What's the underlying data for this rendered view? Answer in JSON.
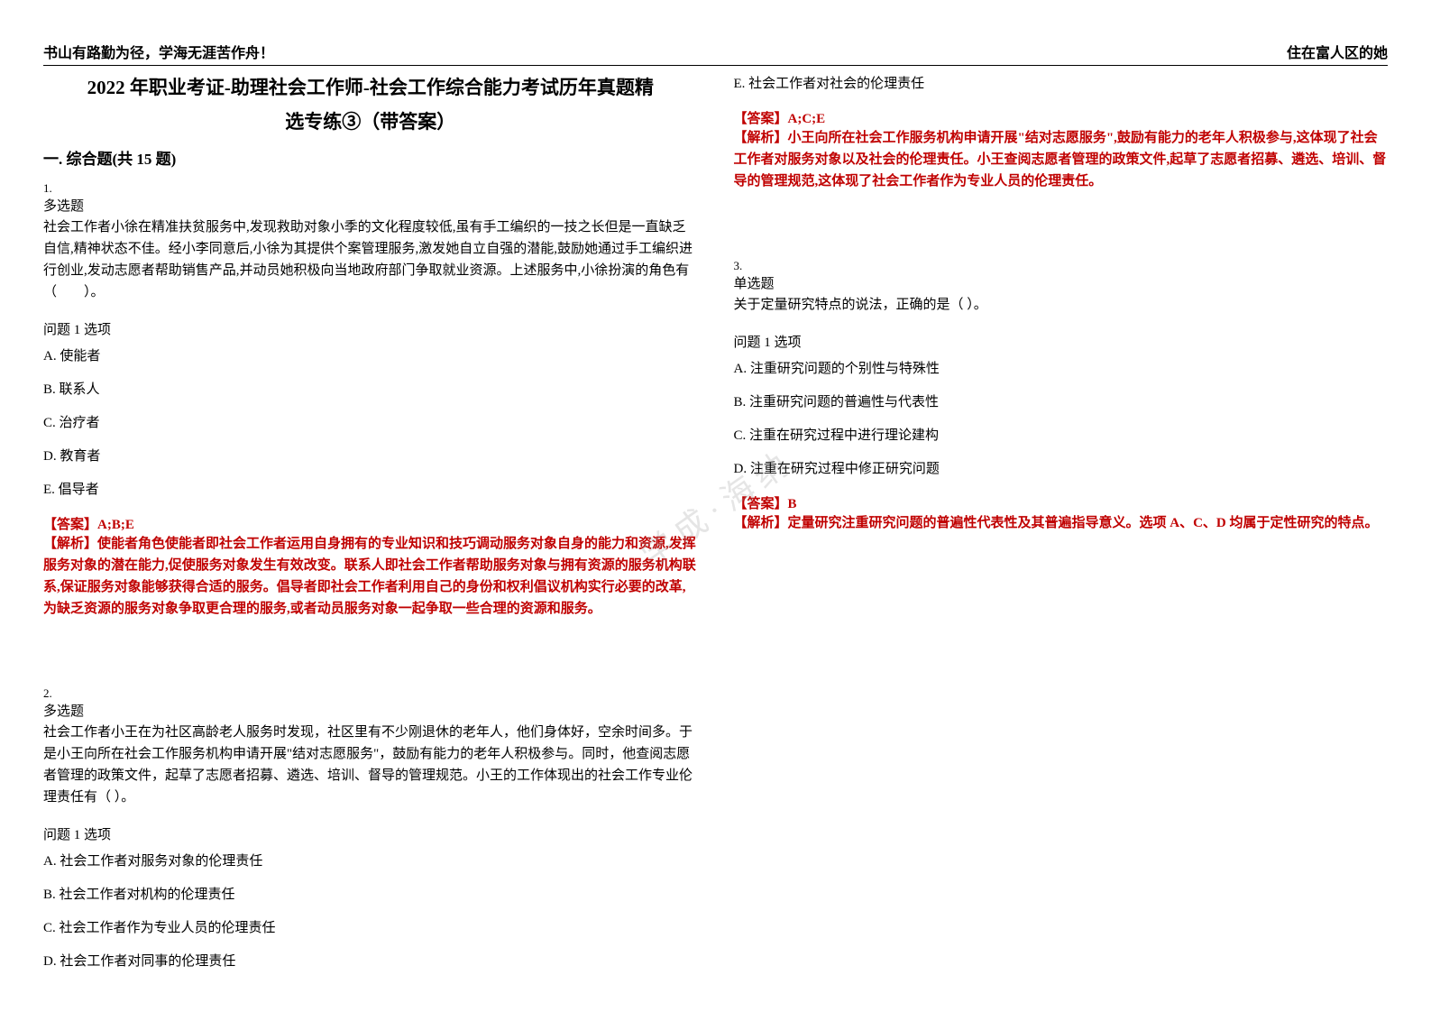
{
  "header": {
    "left": "书山有路勤为径，学海无涯苦作舟！",
    "right": "住在富人区的她"
  },
  "title": {
    "line1": "2022 年职业考证-助理社会工作师-社会工作综合能力考试历年真题精",
    "line2": "选专练③（带答案）"
  },
  "section": "一. 综合题(共 15 题)",
  "watermark": "学成·海纳",
  "questions": [
    {
      "num": "1.",
      "type": "多选题",
      "text": "社会工作者小徐在精准扶贫服务中,发现救助对象小季的文化程度较低,虽有手工编织的一技之长但是一直缺乏自信,精神状态不佳。经小李同意后,小徐为其提供个案管理服务,激发她自立自强的潜能,鼓励她通过手工编织进行创业,发动志愿者帮助销售产品,并动员她积极向当地政府部门争取就业资源。上述服务中,小徐扮演的角色有（　　）。",
      "optionLabel": "问题 1 选项",
      "options": [
        "A. 使能者",
        "B. 联系人",
        "C. 治疗者",
        "D. 教育者",
        "E. 倡导者"
      ],
      "answer": "【答案】A;B;E",
      "analysis": "【解析】使能者角色使能者即社会工作者运用自身拥有的专业知识和技巧调动服务对象自身的能力和资源,发挥服务对象的潜在能力,促使服务对象发生有效改变。联系人即社会工作者帮助服务对象与拥有资源的服务机构联系,保证服务对象能够获得合适的服务。倡导者即社会工作者利用自己的身份和权利倡议机构实行必要的改革,为缺乏资源的服务对象争取更合理的服务,或者动员服务对象一起争取一些合理的资源和服务。"
    },
    {
      "num": "2.",
      "type": "多选题",
      "text": "社会工作者小王在为社区高龄老人服务时发现，社区里有不少刚退休的老年人，他们身体好，空余时间多。于是小王向所在社会工作服务机构申请开展\"结对志愿服务\"，鼓励有能力的老年人积极参与。同时，他查阅志愿者管理的政策文件，起草了志愿者招募、遴选、培训、督导的管理规范。小王的工作体现出的社会工作专业伦理责任有（ ）。",
      "optionLabel": "问题 1 选项",
      "options": [
        "A. 社会工作者对服务对象的伦理责任",
        "B. 社会工作者对机构的伦理责任",
        "C. 社会工作者作为专业人员的伦理责任",
        "D. 社会工作者对同事的伦理责任",
        "E. 社会工作者对社会的伦理责任"
      ],
      "answer": "【答案】A;C;E",
      "analysis": "【解析】小王向所在社会工作服务机构申请开展\"结对志愿服务\",鼓励有能力的老年人积极参与,这体现了社会工作者对服务对象以及社会的伦理责任。小王查阅志愿者管理的政策文件,起草了志愿者招募、遴选、培训、督导的管理规范,这体现了社会工作者作为专业人员的伦理责任。"
    },
    {
      "num": "3.",
      "type": "单选题",
      "text": "关于定量研究特点的说法，正确的是（ ）。",
      "optionLabel": "问题 1 选项",
      "options": [
        "A. 注重研究问题的个别性与特殊性",
        "B. 注重研究问题的普遍性与代表性",
        "C. 注重在研究过程中进行理论建构",
        "D. 注重在研究过程中修正研究问题"
      ],
      "answer": "【答案】B",
      "analysis": "【解析】定量研究注重研究问题的普遍性代表性及其普遍指导意义。选项 A、C、D 均属于定性研究的特点。"
    }
  ],
  "colors": {
    "text": "#000000",
    "answer": "#c00000",
    "background": "#ffffff",
    "watermark": "rgba(150,150,150,0.25)"
  },
  "typography": {
    "title_fontsize": 21,
    "section_fontsize": 17,
    "body_fontsize": 15,
    "header_fontsize": 16,
    "font_family": "SimSun"
  }
}
